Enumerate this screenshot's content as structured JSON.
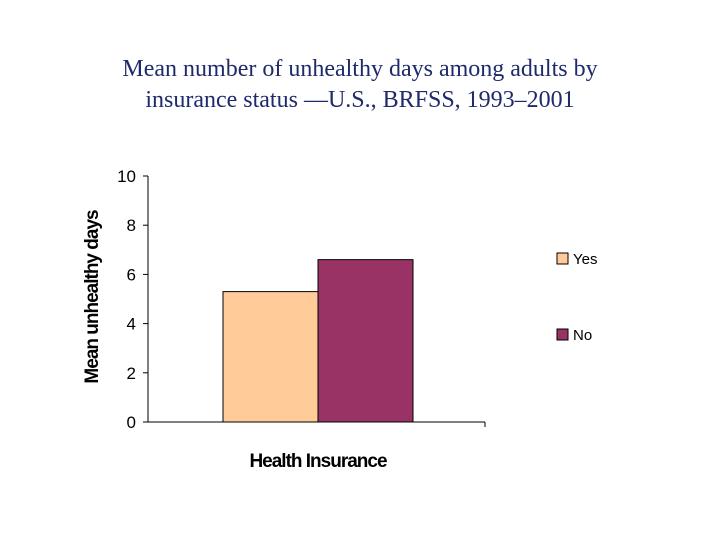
{
  "chart_data": {
    "type": "bar",
    "title": [
      "Mean number of unhealthy days among adults by",
      "insurance status —U.S., BRFSS, 1993–2001"
    ],
    "xlabel": "Health Insurance",
    "ylabel": "Mean unhealthy days",
    "ylim": [
      0,
      10
    ],
    "yticks": [
      0,
      2,
      4,
      6,
      8,
      10
    ],
    "categories": [
      "Health Insurance"
    ],
    "series": [
      {
        "name": "Yes",
        "values": [
          5.3
        ],
        "color": "#ffcc99"
      },
      {
        "name": "No",
        "values": [
          6.6
        ],
        "color": "#993366"
      }
    ],
    "legend": "right",
    "grid": false
  }
}
